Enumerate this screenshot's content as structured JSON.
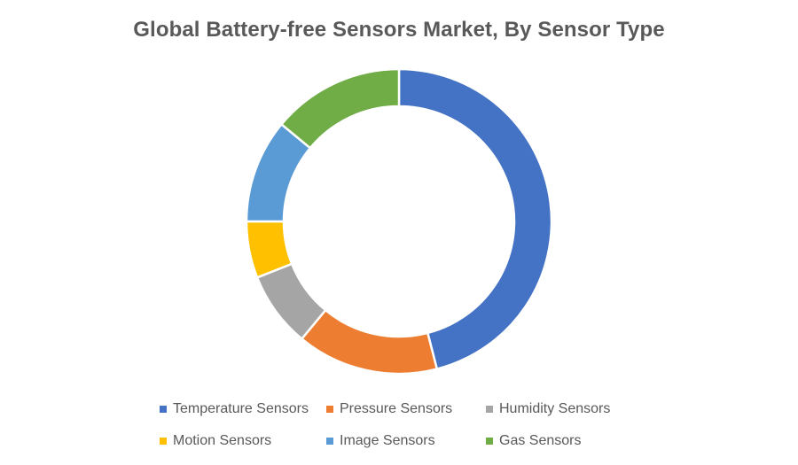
{
  "chart_data": {
    "type": "pie",
    "title": "Global Battery-free Sensors Market, By Sensor Type",
    "legend_position": "bottom",
    "categories": [
      "Temperature Sensors",
      "Pressure Sensors",
      "Humidity Sensors",
      "Motion Sensors",
      "Image Sensors",
      "Gas Sensors"
    ],
    "values": [
      46,
      15,
      8,
      6,
      11,
      14
    ],
    "colors": [
      "#4472C4",
      "#ED7D31",
      "#A5A5A5",
      "#FFC000",
      "#5B9BD5",
      "#70AD47"
    ]
  }
}
